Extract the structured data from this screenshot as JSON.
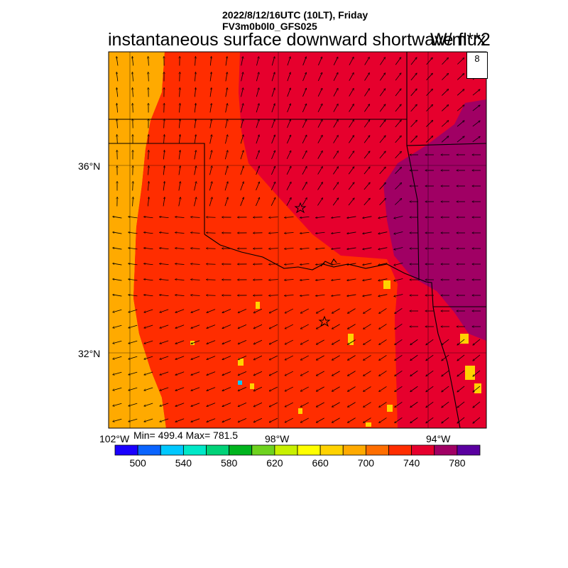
{
  "header": {
    "line1": "2022/8/12/16UTC (10LT), Friday",
    "line2": "FV3m0b0l0_GFS025"
  },
  "title": "instantaneous surface downward shortwave flux",
  "units": "W/m**2",
  "stats": "Min= 499.4 Max= 781.5",
  "vector_reference": {
    "value": "8"
  },
  "axes": {
    "lat_labels": [
      "36°N",
      "32°N"
    ],
    "lon_labels": [
      "102°W",
      "98°W",
      "94°W"
    ]
  },
  "colorbar": {
    "colors": [
      "#1a00ff",
      "#0a64ff",
      "#00c8ff",
      "#00e8c8",
      "#00d278",
      "#00b41e",
      "#6ed21e",
      "#c8f000",
      "#ffff00",
      "#ffd200",
      "#ffaa00",
      "#ff6e00",
      "#ff2d00",
      "#e6002d",
      "#a00064",
      "#5a00a0"
    ],
    "labels": [
      "500",
      "540",
      "580",
      "620",
      "660",
      "700",
      "740",
      "780"
    ]
  },
  "chart_data": {
    "type": "heatmap",
    "title": "instantaneous surface downward shortwave flux",
    "units": "W/m**2",
    "min": 499.4,
    "max": 781.5,
    "colorbar_range": [
      490,
      790
    ],
    "colorbar_interval": 20,
    "markers": [
      "star",
      "star"
    ]
  }
}
